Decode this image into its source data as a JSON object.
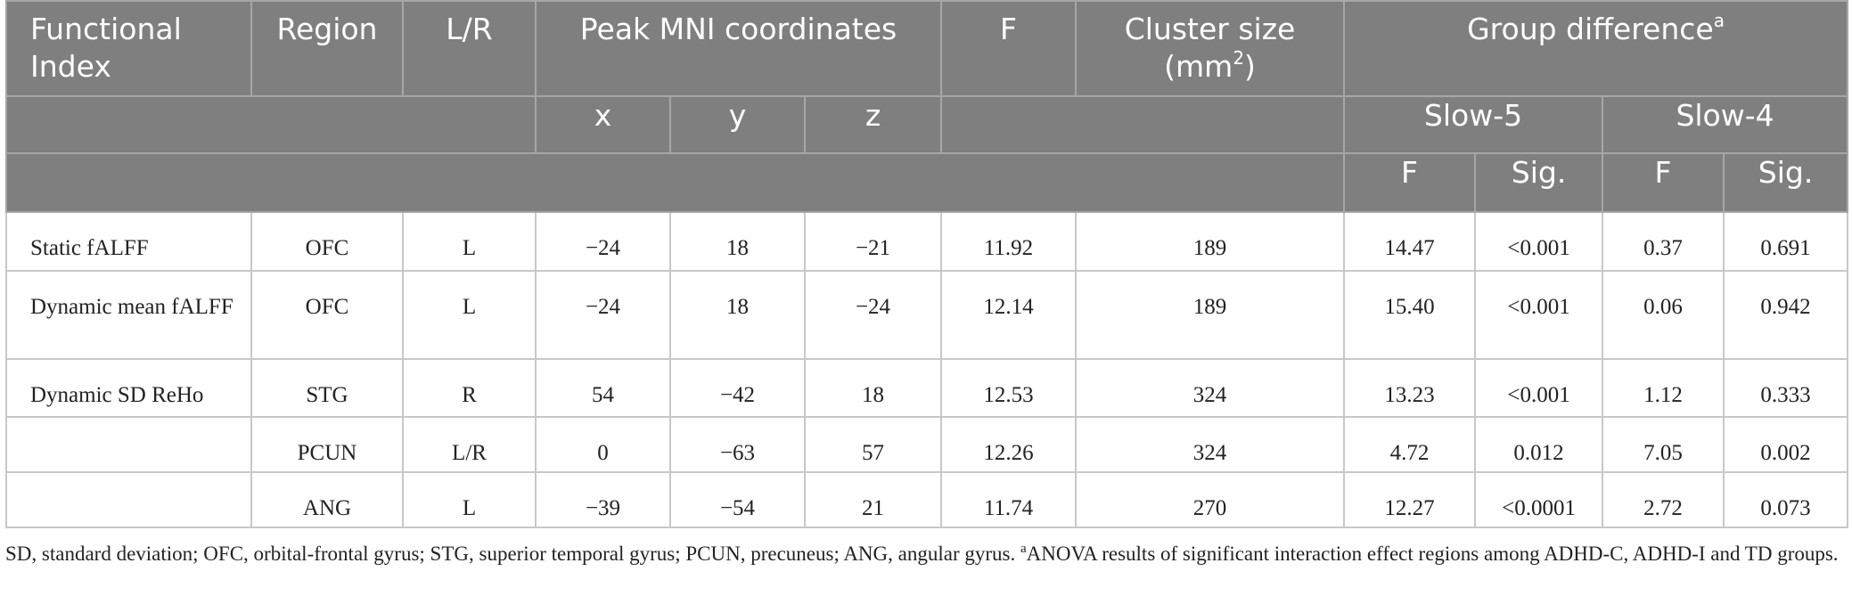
{
  "table": {
    "header": {
      "functional_index": "Functional Index",
      "region": "Region",
      "lr": "L/R",
      "peak": "Peak MNI coordinates",
      "f": "F",
      "cluster_size": {
        "text": "Cluster size (mm",
        "sup": "2",
        "close": ")"
      },
      "group_difference": {
        "text": "Group difference",
        "sup": "a"
      },
      "coords": [
        "x",
        "y",
        "z"
      ],
      "slows": [
        "Slow-5",
        "Slow-4"
      ],
      "stats": [
        "F",
        "Sig.",
        "F",
        "Sig."
      ]
    },
    "rows": [
      [
        "Static fALFF",
        "OFC",
        "L",
        "−24",
        "18",
        "−21",
        "11.92",
        "189",
        "14.47",
        "<0.001",
        "0.37",
        "0.691"
      ],
      [
        "Dynamic mean fALFF",
        "OFC",
        "L",
        "−24",
        "18",
        "−24",
        "12.14",
        "189",
        "15.40",
        "<0.001",
        "0.06",
        "0.942"
      ],
      [
        "Dynamic SD ReHo",
        "STG",
        "R",
        "54",
        "−42",
        "18",
        "12.53",
        "324",
        "13.23",
        "<0.001",
        "1.12",
        "0.333"
      ],
      [
        null,
        "PCUN",
        "L/R",
        "0",
        "−63",
        "57",
        "12.26",
        "324",
        "4.72",
        "0.012",
        "7.05",
        "0.002"
      ],
      [
        null,
        "ANG",
        "L",
        "−39",
        "−54",
        "21",
        "11.74",
        "270",
        "12.27",
        "<0.0001",
        "2.72",
        "0.073"
      ]
    ]
  },
  "footnote": {
    "text": "SD, standard deviation; OFC, orbital-frontal gyrus; STG, superior temporal gyrus; PCUN, precuneus; ANG, angular gyrus. ",
    "sup": "a",
    "text2": "ANOVA results of significant interaction effect regions among ADHD-C, ADHD-I and TD groups."
  }
}
